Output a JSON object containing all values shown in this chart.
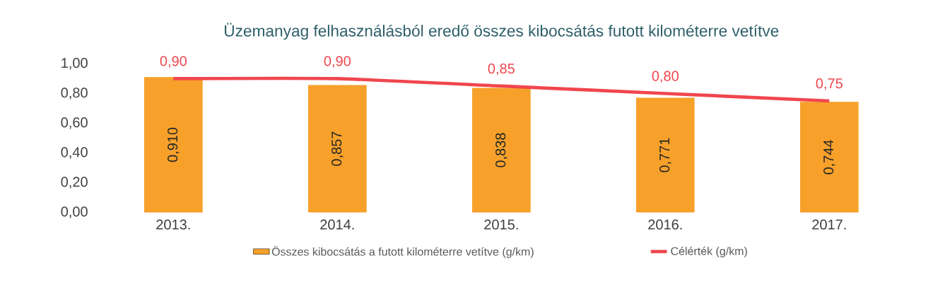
{
  "chart_data": {
    "type": "bar",
    "title": "Üzemanyag felhasználásból eredő  összes kibocsátás futott kilométerre vetítve",
    "categories": [
      "2013.",
      "2014.",
      "2015.",
      "2016.",
      "2017."
    ],
    "series": [
      {
        "name": "Összes kibocsátás a futott kilométerre vetítve (g/km)",
        "type": "bar",
        "color": "#f7a12b",
        "values": [
          0.91,
          0.857,
          0.838,
          0.771,
          0.744
        ],
        "value_labels": [
          "0,910",
          "0,857",
          "0,838",
          "0,771",
          "0,744"
        ]
      },
      {
        "name": "Célérték (g/km)",
        "type": "line",
        "color": "#f0464e",
        "values": [
          0.9,
          0.9,
          0.85,
          0.8,
          0.75
        ],
        "value_labels": [
          "0,90",
          "0,90",
          "0,85",
          "0,80",
          "0,75"
        ]
      }
    ],
    "ylim": [
      0,
      1
    ],
    "yticks": [
      {
        "value": 0,
        "label": "0,00"
      },
      {
        "value": 0.2,
        "label": "0,20"
      },
      {
        "value": 0.4,
        "label": "0,40"
      },
      {
        "value": 0.6,
        "label": "0,60"
      },
      {
        "value": 0.8,
        "label": "0,80"
      },
      {
        "value": 1,
        "label": "1,00"
      }
    ],
    "legend": "bottom"
  }
}
